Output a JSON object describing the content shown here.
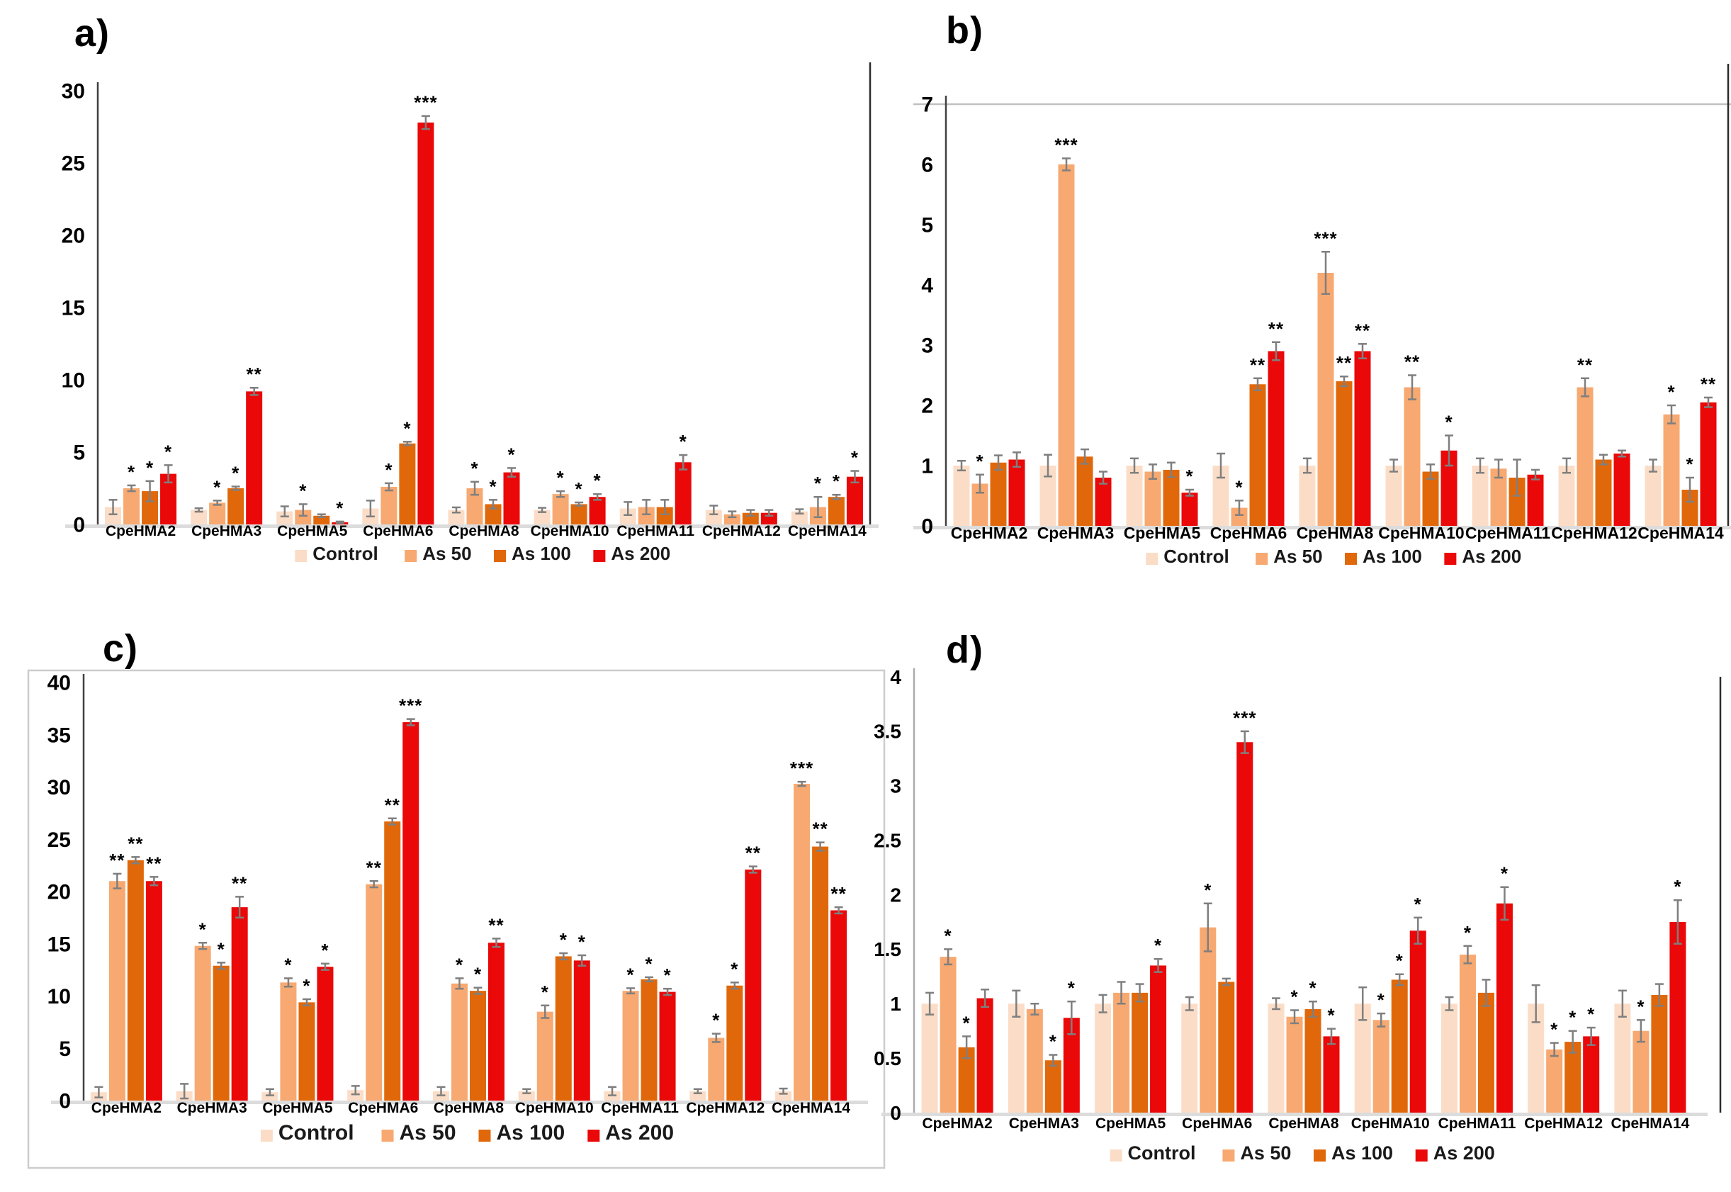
{
  "figure_caption": "CpeHMA gene expression under arsenic treatments, four panels",
  "treatments": [
    "Control",
    "As 50",
    "As 100",
    "As 200"
  ],
  "colors": {
    "control": "#FBDDC7",
    "as50": "#F7A971",
    "as100": "#E1680A",
    "as200": "#EA0809",
    "error_bar": "#7F7F7F",
    "axis": "#404040",
    "axis_light": "#ABABAB",
    "baseline": "#DCDCDC",
    "top_gridline": "#C0C0C0",
    "panel_border": "#CCCCCC",
    "text": "#000000"
  },
  "chart_data": [
    {
      "type": "bar",
      "title": "a)",
      "xlabel": "",
      "ylabel": "",
      "ylim": [
        0,
        30
      ],
      "yticks": [
        0,
        5,
        10,
        15,
        20,
        25,
        30
      ],
      "grid": false,
      "legend_position": "bottom",
      "legend": [
        "Control",
        "As 50",
        "As 100",
        "As 200"
      ],
      "categories": [
        "CpeHMA2",
        "CpeHMA3",
        "CpeHMA5",
        "CpeHMA6",
        "CpeHMA8",
        "CpeHMA10",
        "CpeHMA11",
        "CpeHMA12",
        "CpeHMA14"
      ],
      "series": [
        {
          "name": "Control",
          "color": "#FBDDC7",
          "values": [
            1.2,
            1.0,
            0.9,
            1.1,
            1.0,
            1.0,
            1.1,
            1.0,
            0.9
          ],
          "errors": [
            0.5,
            0.12,
            0.35,
            0.55,
            0.18,
            0.15,
            0.45,
            0.3,
            0.15
          ],
          "sig": [
            "",
            "",
            "",
            "",
            "",
            "",
            "",
            "",
            ""
          ]
        },
        {
          "name": "As 50",
          "color": "#F7A971",
          "values": [
            2.5,
            1.5,
            1.0,
            2.6,
            2.5,
            2.1,
            1.2,
            0.7,
            1.2
          ],
          "errors": [
            0.2,
            0.15,
            0.4,
            0.25,
            0.45,
            0.2,
            0.5,
            0.2,
            0.7
          ],
          "sig": [
            "*",
            "*",
            "*",
            "*",
            "*",
            "*",
            "",
            "",
            "*"
          ]
        },
        {
          "name": "As 100",
          "color": "#E1680A",
          "values": [
            2.3,
            2.5,
            0.6,
            5.6,
            1.4,
            1.4,
            1.2,
            0.8,
            1.9
          ],
          "errors": [
            0.7,
            0.12,
            0.1,
            0.12,
            0.3,
            0.12,
            0.5,
            0.2,
            0.15
          ],
          "sig": [
            "*",
            "*",
            "",
            "*",
            "*",
            "*",
            "",
            "",
            "*"
          ]
        },
        {
          "name": "As 200",
          "color": "#EA0809",
          "values": [
            3.5,
            9.2,
            0.15,
            27.8,
            3.6,
            1.9,
            4.3,
            0.8,
            3.3
          ],
          "errors": [
            0.6,
            0.25,
            0.05,
            0.45,
            0.3,
            0.2,
            0.5,
            0.2,
            0.4
          ],
          "sig": [
            "*",
            "**",
            "*",
            "***",
            "*",
            "*",
            "*",
            "",
            "*"
          ]
        }
      ]
    },
    {
      "type": "bar",
      "title": "b)",
      "xlabel": "",
      "ylabel": "",
      "ylim": [
        0,
        7
      ],
      "yticks": [
        0,
        1,
        2,
        3,
        4,
        5,
        6,
        7
      ],
      "grid": false,
      "legend_position": "bottom",
      "legend": [
        "Control",
        "As 50",
        "As 100",
        "As 200"
      ],
      "categories": [
        "CpeHMA2",
        "CpeHMA3",
        "CpeHMA5",
        "CpeHMA6",
        "CpeHMA8",
        "CpeHMA10",
        "CpeHMA11",
        "CpeHMA12",
        "CpeHMA14"
      ],
      "series": [
        {
          "name": "Control",
          "color": "#FBDDC7",
          "values": [
            1.0,
            1.0,
            1.0,
            1.0,
            1.0,
            1.0,
            1.0,
            1.0,
            1.0
          ],
          "errors": [
            0.08,
            0.18,
            0.12,
            0.2,
            0.12,
            0.1,
            0.12,
            0.12,
            0.1
          ],
          "sig": [
            "",
            "",
            "",
            "",
            "",
            "",
            "",
            "",
            ""
          ]
        },
        {
          "name": "As 50",
          "color": "#F7A971",
          "values": [
            0.7,
            6.0,
            0.9,
            0.3,
            4.2,
            2.3,
            0.95,
            2.3,
            1.85
          ],
          "errors": [
            0.15,
            0.1,
            0.12,
            0.12,
            0.35,
            0.2,
            0.15,
            0.15,
            0.15
          ],
          "sig": [
            "*",
            "***",
            "",
            "*",
            "***",
            "**",
            "",
            "**",
            "*"
          ]
        },
        {
          "name": "As 100",
          "color": "#E1680A",
          "values": [
            1.05,
            1.15,
            0.93,
            2.35,
            2.4,
            0.9,
            0.8,
            1.1,
            0.6
          ],
          "errors": [
            0.12,
            0.12,
            0.12,
            0.1,
            0.08,
            0.12,
            0.3,
            0.08,
            0.2
          ],
          "sig": [
            "",
            "",
            "",
            "**",
            "**",
            "",
            "",
            "",
            "*"
          ]
        },
        {
          "name": "As 200",
          "color": "#EA0809",
          "values": [
            1.1,
            0.8,
            0.55,
            2.9,
            2.9,
            1.25,
            0.85,
            1.2,
            2.05
          ],
          "errors": [
            0.12,
            0.1,
            0.05,
            0.15,
            0.12,
            0.25,
            0.08,
            0.05,
            0.08
          ],
          "sig": [
            "",
            "",
            "*",
            "**",
            "**",
            "*",
            "",
            "",
            "**"
          ]
        }
      ]
    },
    {
      "type": "bar",
      "title": "c)",
      "xlabel": "",
      "ylabel": "",
      "ylim": [
        0,
        40
      ],
      "yticks": [
        0,
        5,
        10,
        15,
        20,
        25,
        30,
        35,
        40
      ],
      "grid": false,
      "legend_position": "bottom",
      "legend": [
        "Control",
        "As 50",
        "As 100",
        "As 200"
      ],
      "categories": [
        "CpeHMA2",
        "CpeHMA3",
        "CpeHMA5",
        "CpeHMA6",
        "CpeHMA8",
        "CpeHMA10",
        "CpeHMA11",
        "CpeHMA12",
        "CpeHMA14"
      ],
      "series": [
        {
          "name": "Control",
          "color": "#FBDDC7",
          "values": [
            0.8,
            0.9,
            0.8,
            1.0,
            0.9,
            0.9,
            0.9,
            0.9,
            0.9
          ],
          "errors": [
            0.5,
            0.7,
            0.3,
            0.4,
            0.4,
            0.2,
            0.4,
            0.2,
            0.25
          ],
          "sig": [
            "",
            "",
            "",
            "",
            "",
            "",
            "",
            "",
            ""
          ]
        },
        {
          "name": "As 50",
          "color": "#F7A971",
          "values": [
            21.0,
            14.8,
            11.3,
            20.7,
            11.2,
            8.5,
            10.5,
            6.0,
            30.3
          ],
          "errors": [
            0.7,
            0.3,
            0.4,
            0.3,
            0.5,
            0.6,
            0.25,
            0.4,
            0.2
          ],
          "sig": [
            "**",
            "*",
            "*",
            "**",
            "*",
            "*",
            "*",
            "*",
            "***"
          ]
        },
        {
          "name": "As 100",
          "color": "#E1680A",
          "values": [
            23.0,
            12.9,
            9.4,
            26.7,
            10.5,
            13.8,
            11.6,
            11.0,
            24.3
          ],
          "errors": [
            0.3,
            0.3,
            0.3,
            0.3,
            0.3,
            0.3,
            0.2,
            0.3,
            0.4
          ],
          "sig": [
            "**",
            "*",
            "*",
            "**",
            "*",
            "*",
            "*",
            "*",
            "**"
          ]
        },
        {
          "name": "As 200",
          "color": "#EA0809",
          "values": [
            21.0,
            18.5,
            12.8,
            36.2,
            15.1,
            13.4,
            10.4,
            22.1,
            18.2
          ],
          "errors": [
            0.4,
            1.0,
            0.3,
            0.3,
            0.4,
            0.5,
            0.3,
            0.3,
            0.3
          ],
          "sig": [
            "**",
            "**",
            "*",
            "***",
            "**",
            "*",
            "*",
            "**",
            "**"
          ]
        }
      ]
    },
    {
      "type": "bar",
      "title": "d)",
      "xlabel": "",
      "ylabel": "",
      "ylim": [
        0,
        4
      ],
      "yticks": [
        0,
        0.5,
        1,
        1.5,
        2,
        2.5,
        3,
        3.5,
        4
      ],
      "grid": false,
      "legend_position": "bottom",
      "legend": [
        "Control",
        "As 50",
        "As 100",
        "As 200"
      ],
      "categories": [
        "CpeHMA2",
        "CpeHMA3",
        "CpeHMA5",
        "CpeHMA6",
        "CpeHMA8",
        "CpeHMA10",
        "CpeHMA11",
        "CpeHMA12",
        "CpeHMA14"
      ],
      "series": [
        {
          "name": "Control",
          "color": "#FBDDC7",
          "values": [
            1.0,
            1.0,
            1.0,
            1.0,
            1.0,
            1.0,
            1.0,
            1.0,
            1.0
          ],
          "errors": [
            0.1,
            0.12,
            0.08,
            0.06,
            0.05,
            0.15,
            0.06,
            0.17,
            0.12
          ],
          "sig": [
            "",
            "",
            "",
            "",
            "",
            "",
            "",
            "",
            ""
          ]
        },
        {
          "name": "As 50",
          "color": "#F7A971",
          "values": [
            1.43,
            0.95,
            1.1,
            1.7,
            0.88,
            0.85,
            1.45,
            0.58,
            0.75
          ],
          "errors": [
            0.07,
            0.05,
            0.1,
            0.22,
            0.06,
            0.06,
            0.08,
            0.06,
            0.1
          ],
          "sig": [
            "*",
            "",
            "",
            "*",
            "*",
            "*",
            "*",
            "*",
            "*"
          ]
        },
        {
          "name": "As 100",
          "color": "#E1680A",
          "values": [
            0.6,
            0.48,
            1.1,
            1.2,
            0.95,
            1.22,
            1.1,
            0.65,
            1.08
          ],
          "errors": [
            0.1,
            0.05,
            0.08,
            0.03,
            0.07,
            0.05,
            0.12,
            0.1,
            0.1
          ],
          "sig": [
            "*",
            "*",
            "",
            "",
            "*",
            "*",
            "",
            "*",
            ""
          ]
        },
        {
          "name": "As 200",
          "color": "#EA0809",
          "values": [
            1.05,
            0.87,
            1.35,
            3.4,
            0.7,
            1.67,
            1.92,
            0.7,
            1.75
          ],
          "errors": [
            0.08,
            0.15,
            0.06,
            0.1,
            0.07,
            0.12,
            0.15,
            0.08,
            0.2
          ],
          "sig": [
            "",
            "*",
            "*",
            "***",
            "*",
            "*",
            "*",
            "*",
            "*"
          ]
        }
      ]
    }
  ]
}
